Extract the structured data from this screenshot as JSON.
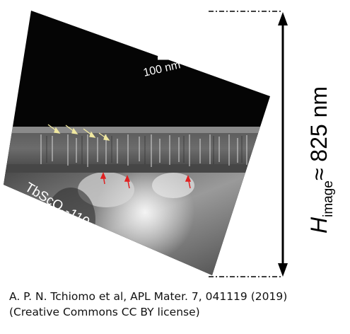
{
  "figure": {
    "scale_bar_label": "100 nm",
    "substrate_label": {
      "prefix": "TbScO",
      "subscript": "3",
      "suffix": "-110"
    },
    "height_annotation": {
      "symbol": "H",
      "subscript": "image",
      "relation": "≈ 825 nm"
    },
    "colors": {
      "background": "#ffffff",
      "micrograph_dark": "#050505",
      "arrow_yellow": "#f0e8a0",
      "arrow_red": "#e02020",
      "dimension_line": "#000000"
    },
    "icons": [
      "double-headed-arrow-icon",
      "yellow-arrow-icon",
      "red-arrow-icon"
    ]
  },
  "caption": {
    "line1": "A. P. N. Tchiomo et al, APL Mater. 7, 041119 (2019)",
    "line2": "(Creative Commons CC BY license)"
  }
}
